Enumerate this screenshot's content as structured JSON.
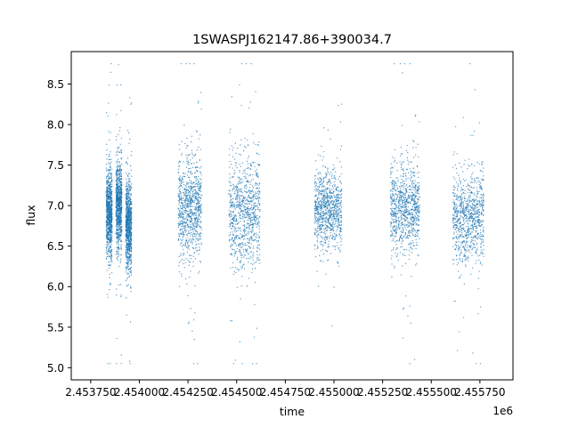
{
  "chart_data": {
    "type": "scatter",
    "title": "1SWASPJ162147.86+390034.7",
    "xlabel": "time",
    "ylabel": "flux",
    "x_offset_label": "1e6",
    "xlim": [
      2.45365,
      2.45592
    ],
    "ylim": [
      4.85,
      8.9
    ],
    "x_ticks": [
      2.45375,
      2.454,
      2.45425,
      2.4545,
      2.45475,
      2.455,
      2.45525,
      2.4555,
      2.45575
    ],
    "x_tick_labels": [
      "2.453750",
      "2.454000",
      "2.454250",
      "2.454500",
      "2.454750",
      "2.455000",
      "2.455250",
      "2.455500",
      "2.455750"
    ],
    "y_ticks": [
      5.0,
      5.5,
      6.0,
      6.5,
      7.0,
      7.5,
      8.0,
      8.5
    ],
    "y_tick_labels": [
      "5.0",
      "5.5",
      "6.0",
      "6.5",
      "7.0",
      "7.5",
      "8.0",
      "8.5"
    ],
    "grid": false,
    "point_color": "#1f77b4",
    "series": [
      {
        "segments": [
          {
            "x_start": 2.45383,
            "x_end": 2.45386,
            "center": 6.9,
            "spread": 0.35
          },
          {
            "x_start": 2.45388,
            "x_end": 2.45391,
            "center": 7.0,
            "spread": 0.35
          },
          {
            "x_start": 2.45393,
            "x_end": 2.45396,
            "center": 6.75,
            "spread": 0.35
          },
          {
            "x_start": 2.4542,
            "x_end": 2.45432,
            "center": 6.95,
            "spread": 0.4
          },
          {
            "x_start": 2.45446,
            "x_end": 2.45462,
            "center": 6.9,
            "spread": 0.45
          },
          {
            "x_start": 2.4549,
            "x_end": 2.45504,
            "center": 6.95,
            "spread": 0.3
          },
          {
            "x_start": 2.45529,
            "x_end": 2.45544,
            "center": 6.95,
            "spread": 0.35
          },
          {
            "x_start": 2.45561,
            "x_end": 2.45577,
            "center": 6.85,
            "spread": 0.35
          }
        ],
        "y_min": 5.05,
        "y_max": 8.75
      }
    ]
  }
}
